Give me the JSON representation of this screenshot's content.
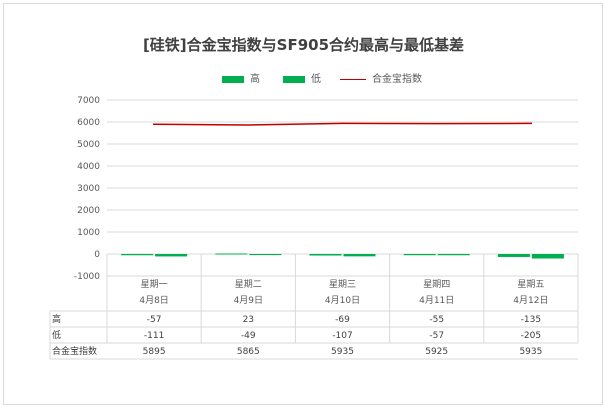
{
  "chart_data": {
    "type": "bar",
    "title": "[硅铁]合金宝指数与SF905合约最高与最低基差",
    "categories": [
      {
        "day": "星期一",
        "date": "4月8日"
      },
      {
        "day": "星期二",
        "date": "4月9日"
      },
      {
        "day": "星期三",
        "date": "4月10日"
      },
      {
        "day": "星期四",
        "date": "4月11日"
      },
      {
        "day": "星期五",
        "date": "4月12日"
      }
    ],
    "series": [
      {
        "name": "高",
        "kind": "bar",
        "color": "#00b050",
        "values": [
          -57,
          23,
          -69,
          -55,
          -135
        ]
      },
      {
        "name": "低",
        "kind": "bar",
        "color": "#00b050",
        "values": [
          -111,
          -49,
          -107,
          -57,
          -205
        ]
      },
      {
        "name": "合金宝指数",
        "kind": "line",
        "color": "#c00000",
        "values": [
          5895,
          5865,
          5935,
          5925,
          5935
        ]
      }
    ],
    "ylim": [
      -1000,
      7000
    ],
    "yticks": [
      -1000,
      0,
      1000,
      2000,
      3000,
      4000,
      5000,
      6000,
      7000
    ],
    "grid": true,
    "legend_position": "top",
    "data_table": true
  }
}
